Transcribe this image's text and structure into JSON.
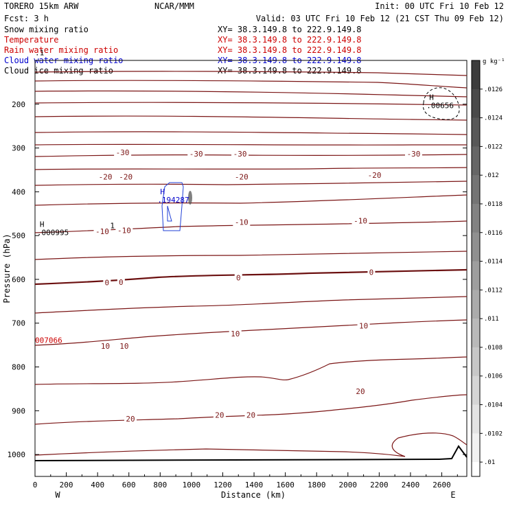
{
  "header": {
    "model": "TORERO  15km ARW",
    "center": "NCAR/MMM",
    "init": "Init: 00 UTC Fri 10 Feb 12",
    "fcst": "Fcst:    3 h",
    "valid": "Valid: 03 UTC Fri 10 Feb 12 (21 CST Thu 09 Feb 12)"
  },
  "fields": [
    {
      "name": "Snow mixing ratio",
      "xy": "XY=  38.3.149.8 to 222.9.149.8",
      "color": "#000000"
    },
    {
      "name": "Temperature",
      "xy": "XY=  38.3.149.8 to 222.9.149.8",
      "color": "#cc0000"
    },
    {
      "name": "Rain water mixing ratio",
      "xy": "XY=  38.3.149.8 to 222.9.149.8",
      "color": "#cc0000"
    },
    {
      "name": "Cloud water mixing ratio",
      "xy": "XY=  38.3.149.8 to 222.9.149.8",
      "color": "#0000cc"
    },
    {
      "name": "Cloud ice mixing ratio",
      "xy": "XY=  38.3.149.8 to 222.9.149.8",
      "color": "#000000"
    }
  ],
  "chart_data": {
    "type": "cross-section contour",
    "xlabel": "Distance (km)",
    "ylabel": "Pressure (hPa)",
    "x_ticks": [
      0,
      200,
      400,
      600,
      800,
      1000,
      1200,
      1400,
      1600,
      1800,
      2000,
      2200,
      2400,
      2600
    ],
    "x_range": [
      0,
      2760
    ],
    "y_ticks": [
      200,
      300,
      400,
      500,
      600,
      700,
      800,
      900,
      1000
    ],
    "y_range": [
      100,
      1050
    ],
    "y_scale": "linear (inverted)",
    "left_end": "W",
    "right_end": "E",
    "temperature_labels": [
      {
        "value": "-30",
        "x": 560,
        "p": 310
      },
      {
        "value": "-30",
        "x": 1030,
        "p": 313
      },
      {
        "value": "-30",
        "x": 1310,
        "p": 313
      },
      {
        "value": "-30",
        "x": 2420,
        "p": 313
      },
      {
        "value": "-20",
        "x": 450,
        "p": 366
      },
      {
        "value": "-20",
        "x": 580,
        "p": 366
      },
      {
        "value": "-20",
        "x": 1320,
        "p": 366
      },
      {
        "value": "-20",
        "x": 2170,
        "p": 362
      },
      {
        "value": "-10",
        "x": 430,
        "p": 490
      },
      {
        "value": "-10",
        "x": 570,
        "p": 488
      },
      {
        "value": "-10",
        "x": 1320,
        "p": 469
      },
      {
        "value": "-10",
        "x": 2080,
        "p": 466
      },
      {
        "value": "0",
        "x": 460,
        "p": 607
      },
      {
        "value": "0",
        "x": 550,
        "p": 606
      },
      {
        "value": "0",
        "x": 1300,
        "p": 596
      },
      {
        "value": "0",
        "x": 2150,
        "p": 584
      },
      {
        "value": "10",
        "x": 450,
        "p": 752
      },
      {
        "value": "10",
        "x": 570,
        "p": 752
      },
      {
        "value": "10",
        "x": 1280,
        "p": 724
      },
      {
        "value": "10",
        "x": 2100,
        "p": 706
      },
      {
        "value": "20",
        "x": 610,
        "p": 918
      },
      {
        "value": "20",
        "x": 1180,
        "p": 910
      },
      {
        "value": "20",
        "x": 1380,
        "p": 910
      },
      {
        "value": "20",
        "x": 2080,
        "p": 856
      }
    ],
    "annotations": [
      {
        "text": "H",
        "sub": ".00656",
        "x": 2520,
        "p": 190,
        "color": "#000000"
      },
      {
        "text": "H",
        "sub": ".194287",
        "x": 800,
        "p": 406,
        "color": "#0000cc"
      },
      {
        "text": "H",
        "sub": ".000995",
        "x": 30,
        "p": 480,
        "color": "#000000"
      },
      {
        "text": "007066",
        "x": 0,
        "p": 745,
        "color": "#cc0000"
      },
      {
        "text": ".1",
        "x": 0,
        "p": 88,
        "color": "#000000"
      },
      {
        "text": "1",
        "x": 480,
        "p": 483,
        "color": "#000000"
      }
    ],
    "colorbar": {
      "unit": "g kg⁻¹",
      "labels": [
        ".0126",
        ".0124",
        ".0122",
        ".012",
        ".0118",
        ".0116",
        ".0114",
        ".0112",
        ".011",
        ".0108",
        ".0106",
        ".0104",
        ".0102",
        ".01"
      ]
    }
  }
}
